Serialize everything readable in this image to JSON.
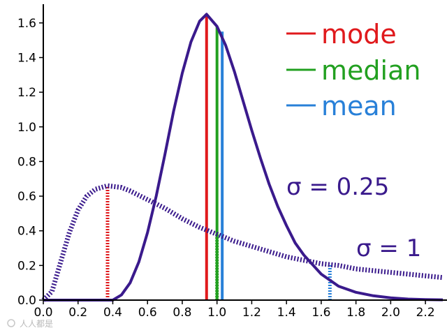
{
  "watermark": "人人都是",
  "chart_data": {
    "type": "line",
    "title": "",
    "xlabel": "",
    "ylabel": "",
    "xlim": [
      0.0,
      2.3
    ],
    "ylim": [
      0.0,
      1.7
    ],
    "x_ticks": [
      "0.0",
      "0.2",
      "0.4",
      "0.6",
      "0.8",
      "1.0",
      "1.2",
      "1.4",
      "1.6",
      "1.8",
      "2.0",
      "2.2"
    ],
    "y_ticks": [
      "0.0",
      "0.2",
      "0.4",
      "0.6",
      "0.8",
      "1.0",
      "1.2",
      "1.4",
      "1.6"
    ],
    "grid": false,
    "legend_position": "top-right",
    "legend": [
      {
        "label": "mode",
        "color": "#e0191c"
      },
      {
        "label": "median",
        "color": "#22a020"
      },
      {
        "label": "mean",
        "color": "#2880d8"
      }
    ],
    "annotations": [
      {
        "text": "σ = 0.25",
        "color": "#3a1a8c"
      },
      {
        "text": "σ = 1",
        "color": "#3a1a8c"
      }
    ],
    "series": [
      {
        "style": "solid",
        "color": "#3a1a8c",
        "x": [
          0.0,
          0.4,
          0.45,
          0.5,
          0.55,
          0.6,
          0.65,
          0.7,
          0.75,
          0.8,
          0.85,
          0.9,
          0.94,
          1.0,
          1.05,
          1.1,
          1.15,
          1.2,
          1.25,
          1.3,
          1.35,
          1.4,
          1.45,
          1.5,
          1.6,
          1.7,
          1.8,
          1.9,
          2.0,
          2.1,
          2.2,
          2.3
        ],
        "y": [
          0.0,
          0.0,
          0.03,
          0.1,
          0.22,
          0.39,
          0.6,
          0.84,
          1.09,
          1.31,
          1.49,
          1.61,
          1.65,
          1.58,
          1.47,
          1.32,
          1.15,
          0.98,
          0.82,
          0.67,
          0.54,
          0.43,
          0.33,
          0.26,
          0.15,
          0.08,
          0.045,
          0.025,
          0.013,
          0.006,
          0.003,
          0.0015
        ]
      },
      {
        "style": "dotted",
        "color": "#3a1a8c",
        "x": [
          0.0,
          0.05,
          0.1,
          0.15,
          0.2,
          0.25,
          0.3,
          0.37,
          0.45,
          0.5,
          0.6,
          0.7,
          0.8,
          0.9,
          1.0,
          1.1,
          1.2,
          1.3,
          1.4,
          1.5,
          1.6,
          1.7,
          1.8,
          1.9,
          2.0,
          2.1,
          2.2,
          2.3
        ],
        "y": [
          0.0,
          0.05,
          0.22,
          0.39,
          0.52,
          0.6,
          0.64,
          0.66,
          0.65,
          0.63,
          0.58,
          0.53,
          0.47,
          0.42,
          0.38,
          0.34,
          0.31,
          0.28,
          0.25,
          0.23,
          0.21,
          0.2,
          0.18,
          0.17,
          0.16,
          0.15,
          0.14,
          0.13
        ]
      }
    ],
    "markers": [
      {
        "x": 0.94,
        "y": 1.65,
        "color": "#e0191c",
        "style": "solid"
      },
      {
        "x": 1.0,
        "y": 1.58,
        "color": "#22a020",
        "style": "solid"
      },
      {
        "x": 1.03,
        "y": 1.55,
        "color": "#2880d8",
        "style": "solid"
      },
      {
        "x": 0.37,
        "y": 0.66,
        "color": "#e0191c",
        "style": "dotted"
      },
      {
        "x": 1.0,
        "y": 0.39,
        "color": "#22a020",
        "style": "dotted"
      },
      {
        "x": 1.65,
        "y": 0.21,
        "color": "#2880d8",
        "style": "dotted"
      }
    ]
  }
}
